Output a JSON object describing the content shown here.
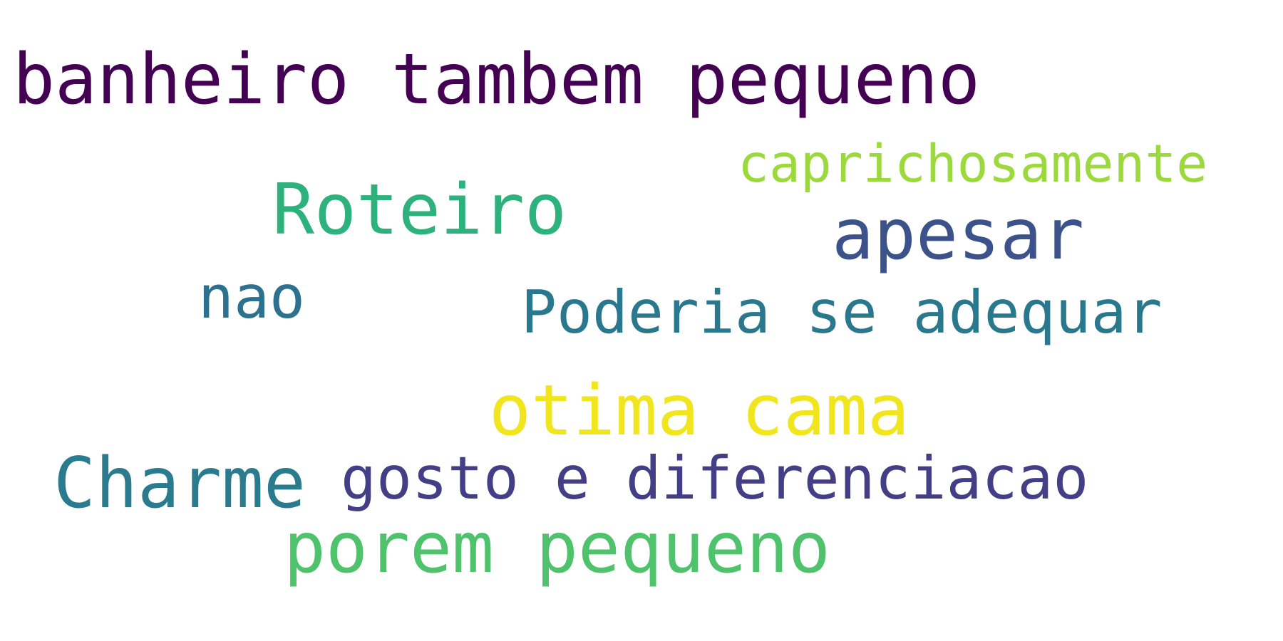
{
  "words": [
    {
      "text": "banheiro tambem pequeno",
      "color": "#440154"
    },
    {
      "text": "caprichosamente",
      "color": "#9bd93c"
    },
    {
      "text": "Roteiro",
      "color": "#2db27d"
    },
    {
      "text": "apesar",
      "color": "#3b528b"
    },
    {
      "text": "nao",
      "color": "#2c728e"
    },
    {
      "text": "Poderia se adequar",
      "color": "#2a788e"
    },
    {
      "text": "otima cama",
      "color": "#f1e51d"
    },
    {
      "text": "Charme",
      "color": "#2a7b8e"
    },
    {
      "text": "gosto e diferenciacao",
      "color": "#433e85"
    },
    {
      "text": "porem pequeno",
      "color": "#4ec36b"
    }
  ]
}
